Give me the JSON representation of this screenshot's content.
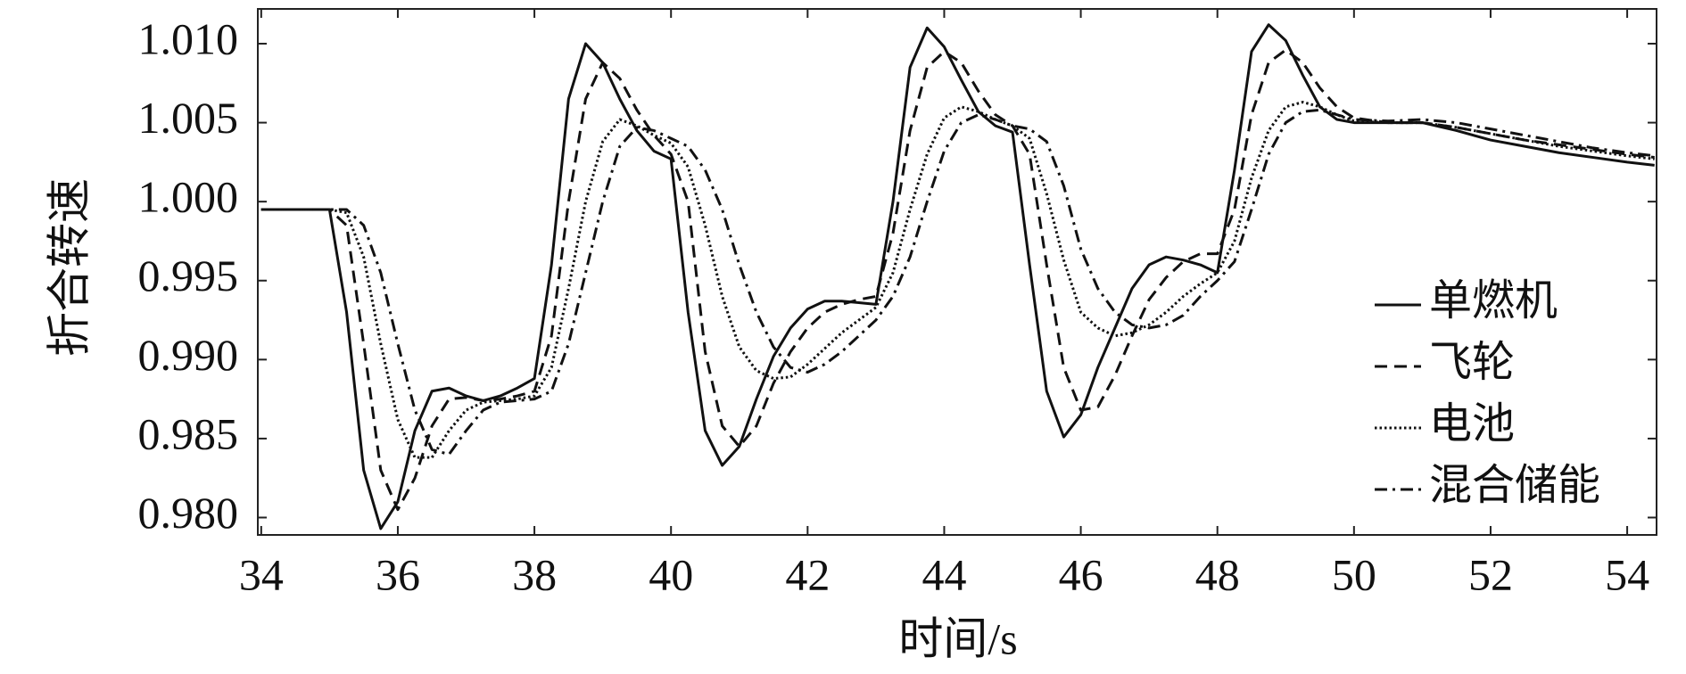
{
  "chart_data": {
    "type": "line",
    "xlabel": "时间/s",
    "ylabel": "折合转速",
    "xlim": [
      33.95,
      54.43
    ],
    "ylim": [
      0.9789,
      1.0122
    ],
    "xticks": [
      34,
      36,
      38,
      40,
      42,
      44,
      46,
      48,
      50,
      52,
      54
    ],
    "yticks": [
      {
        "value": 0.98,
        "label": "0.980"
      },
      {
        "value": 0.985,
        "label": "0.985"
      },
      {
        "value": 0.99,
        "label": "0.990"
      },
      {
        "value": 0.995,
        "label": "0.995"
      },
      {
        "value": 1.0,
        "label": "1.000"
      },
      {
        "value": 1.005,
        "label": "1.005"
      },
      {
        "value": 1.01,
        "label": "1.010"
      }
    ],
    "grid": false,
    "legend_loc": "lower right",
    "x": [
      34,
      34.5,
      35,
      35.25,
      35.5,
      35.75,
      36,
      36.25,
      36.5,
      36.75,
      37,
      37.25,
      37.5,
      37.75,
      38,
      38.25,
      38.5,
      38.75,
      39,
      39.25,
      39.5,
      39.75,
      40,
      40.25,
      40.5,
      40.75,
      41,
      41.25,
      41.5,
      41.75,
      42,
      42.25,
      42.5,
      42.75,
      43,
      43.25,
      43.5,
      43.75,
      44,
      44.25,
      44.5,
      44.75,
      45,
      45.25,
      45.5,
      45.75,
      46,
      46.25,
      46.5,
      46.75,
      47,
      47.25,
      47.5,
      47.75,
      48,
      48.25,
      48.5,
      48.75,
      49,
      49.25,
      49.5,
      49.75,
      50,
      50.5,
      51,
      51.5,
      52,
      52.5,
      53,
      53.5,
      54,
      54.4
    ],
    "series": [
      {
        "name": "单燃机",
        "color": "#111111",
        "dash": "solid",
        "values": [
          0.9995,
          0.9995,
          0.9995,
          0.993,
          0.983,
          0.9793,
          0.981,
          0.9855,
          0.988,
          0.9882,
          0.9877,
          0.9874,
          0.9877,
          0.9882,
          0.9888,
          0.996,
          1.0065,
          1.01,
          1.0088,
          1.0065,
          1.0045,
          1.0032,
          1.0027,
          0.993,
          0.9855,
          0.9833,
          0.9845,
          0.9875,
          0.9902,
          0.992,
          0.9932,
          0.9937,
          0.9937,
          0.9936,
          0.9935,
          1.0,
          1.0085,
          1.011,
          1.0098,
          1.0077,
          1.0057,
          1.0048,
          1.0044,
          0.996,
          0.988,
          0.9851,
          0.9865,
          0.9895,
          0.992,
          0.9945,
          0.996,
          0.9965,
          0.9963,
          0.996,
          0.9955,
          1.002,
          1.0095,
          1.0112,
          1.0102,
          1.008,
          1.006,
          1.0052,
          1.005,
          1.005,
          1.005,
          1.0045,
          1.0039,
          1.0035,
          1.0031,
          1.0028,
          1.0025,
          1.0023
        ]
      },
      {
        "name": "飞轮",
        "color": "#111111",
        "dash": "dashed",
        "values": [
          0.9995,
          0.9995,
          0.9995,
          0.9985,
          0.991,
          0.983,
          0.9805,
          0.9825,
          0.9858,
          0.9875,
          0.9876,
          0.9874,
          0.9875,
          0.9877,
          0.988,
          0.9915,
          1.0,
          1.0065,
          1.0088,
          1.0078,
          1.0058,
          1.0042,
          1.003,
          1.0,
          0.9905,
          0.9858,
          0.9845,
          0.9858,
          0.9885,
          0.9905,
          0.992,
          0.993,
          0.9935,
          0.9938,
          0.994,
          0.998,
          1.0045,
          1.0085,
          1.0095,
          1.0088,
          1.007,
          1.0055,
          1.0048,
          1.003,
          0.996,
          0.9895,
          0.9868,
          0.987,
          0.989,
          0.9915,
          0.9938,
          0.9952,
          0.9962,
          0.9967,
          0.9967,
          0.9995,
          1.0055,
          1.0088,
          1.0096,
          1.0088,
          1.0072,
          1.006,
          1.0053,
          1.005,
          1.005,
          1.0047,
          1.0043,
          1.0039,
          1.0036,
          1.0033,
          1.003,
          1.0028
        ]
      },
      {
        "name": "电池",
        "color": "#111111",
        "dash": "dotted",
        "values": [
          0.9995,
          0.9995,
          0.9995,
          0.9993,
          0.9965,
          0.991,
          0.9862,
          0.9838,
          0.9838,
          0.9855,
          0.9868,
          0.9873,
          0.9874,
          0.9875,
          0.9877,
          0.9895,
          0.9945,
          1.0,
          1.0038,
          1.0052,
          1.0048,
          1.0042,
          1.0037,
          1.0022,
          0.9985,
          0.994,
          0.9908,
          0.9893,
          0.9888,
          0.9889,
          0.9897,
          0.9907,
          0.9917,
          0.9925,
          0.9933,
          0.9955,
          0.9995,
          1.003,
          1.0053,
          1.006,
          1.0057,
          1.0052,
          1.0048,
          1.004,
          1.0005,
          0.9963,
          0.993,
          0.992,
          0.9915,
          0.9917,
          0.9922,
          0.993,
          0.994,
          0.9948,
          0.9955,
          0.9975,
          1.0015,
          1.0045,
          1.006,
          1.0063,
          1.006,
          1.0055,
          1.0051,
          1.005,
          1.005,
          1.0047,
          1.0043,
          1.0039,
          1.0035,
          1.0032,
          1.0029,
          1.0027
        ]
      },
      {
        "name": "混合储能",
        "color": "#111111",
        "dash": "dashdot",
        "values": [
          0.9995,
          0.9995,
          0.9995,
          0.9995,
          0.9985,
          0.9955,
          0.991,
          0.9868,
          0.9843,
          0.984,
          0.9855,
          0.9868,
          0.9873,
          0.9874,
          0.9875,
          0.988,
          0.991,
          0.9955,
          1.0,
          1.0035,
          1.0047,
          1.0045,
          1.004,
          1.0035,
          1.002,
          0.9995,
          0.996,
          0.993,
          0.9908,
          0.9895,
          0.9892,
          0.9897,
          0.9905,
          0.9915,
          0.9925,
          0.994,
          0.9965,
          1.0,
          1.0032,
          1.005,
          1.0055,
          1.0052,
          1.0048,
          1.0046,
          1.0038,
          1.001,
          0.997,
          0.9945,
          0.993,
          0.9922,
          0.992,
          0.9922,
          0.9928,
          0.994,
          0.995,
          0.9962,
          0.9995,
          1.003,
          1.005,
          1.0057,
          1.0058,
          1.0055,
          1.0052,
          1.0051,
          1.0052,
          1.005,
          1.0046,
          1.0042,
          1.0038,
          1.0034,
          1.0031,
          1.0029
        ]
      }
    ]
  }
}
